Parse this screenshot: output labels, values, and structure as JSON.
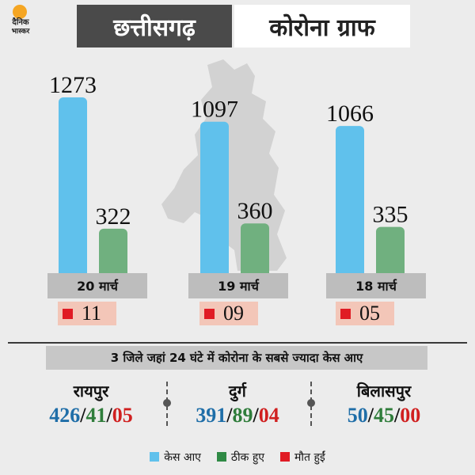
{
  "logo": {
    "line1": "दैनिक",
    "line2": "भास्कर"
  },
  "header": {
    "title_left": "छत्तीसगढ़",
    "title_right": "कोरोना ग्राफ"
  },
  "colors": {
    "cases": "#60c1ec",
    "recovered": "#70b07f",
    "deaths": "#e01b24"
  },
  "chart_data": {
    "type": "bar",
    "categories": [
      "20 मार्च",
      "19 मार्च",
      "18 मार्च"
    ],
    "series": [
      {
        "name": "केस आए",
        "values": [
          1273,
          1097,
          1066
        ]
      },
      {
        "name": "ठीक हुए",
        "values": [
          322,
          360,
          335
        ]
      },
      {
        "name": "मौत हुईं",
        "values": [
          "11",
          "09",
          "05"
        ]
      }
    ],
    "title": "कोरोना ग्राफ",
    "legend": "bottom-center"
  },
  "districts_title": "3 जिले जहां 24 घंटे में कोरोना के सबसे ज्यादा केस आए",
  "districts": [
    {
      "name": "रायपुर",
      "cases": "426",
      "recovered": "41",
      "deaths": "05"
    },
    {
      "name": "दुर्ग",
      "cases": "391",
      "recovered": "89",
      "deaths": "04"
    },
    {
      "name": "बिलासपुर",
      "cases": "50",
      "recovered": "45",
      "deaths": "00"
    }
  ],
  "separator": "/",
  "legend": [
    {
      "label": "केस आए",
      "icon": "cases-swatch"
    },
    {
      "label": "ठीक हुए",
      "icon": "recovered-swatch"
    },
    {
      "label": "मौत हुईं",
      "icon": "deaths-swatch"
    }
  ]
}
